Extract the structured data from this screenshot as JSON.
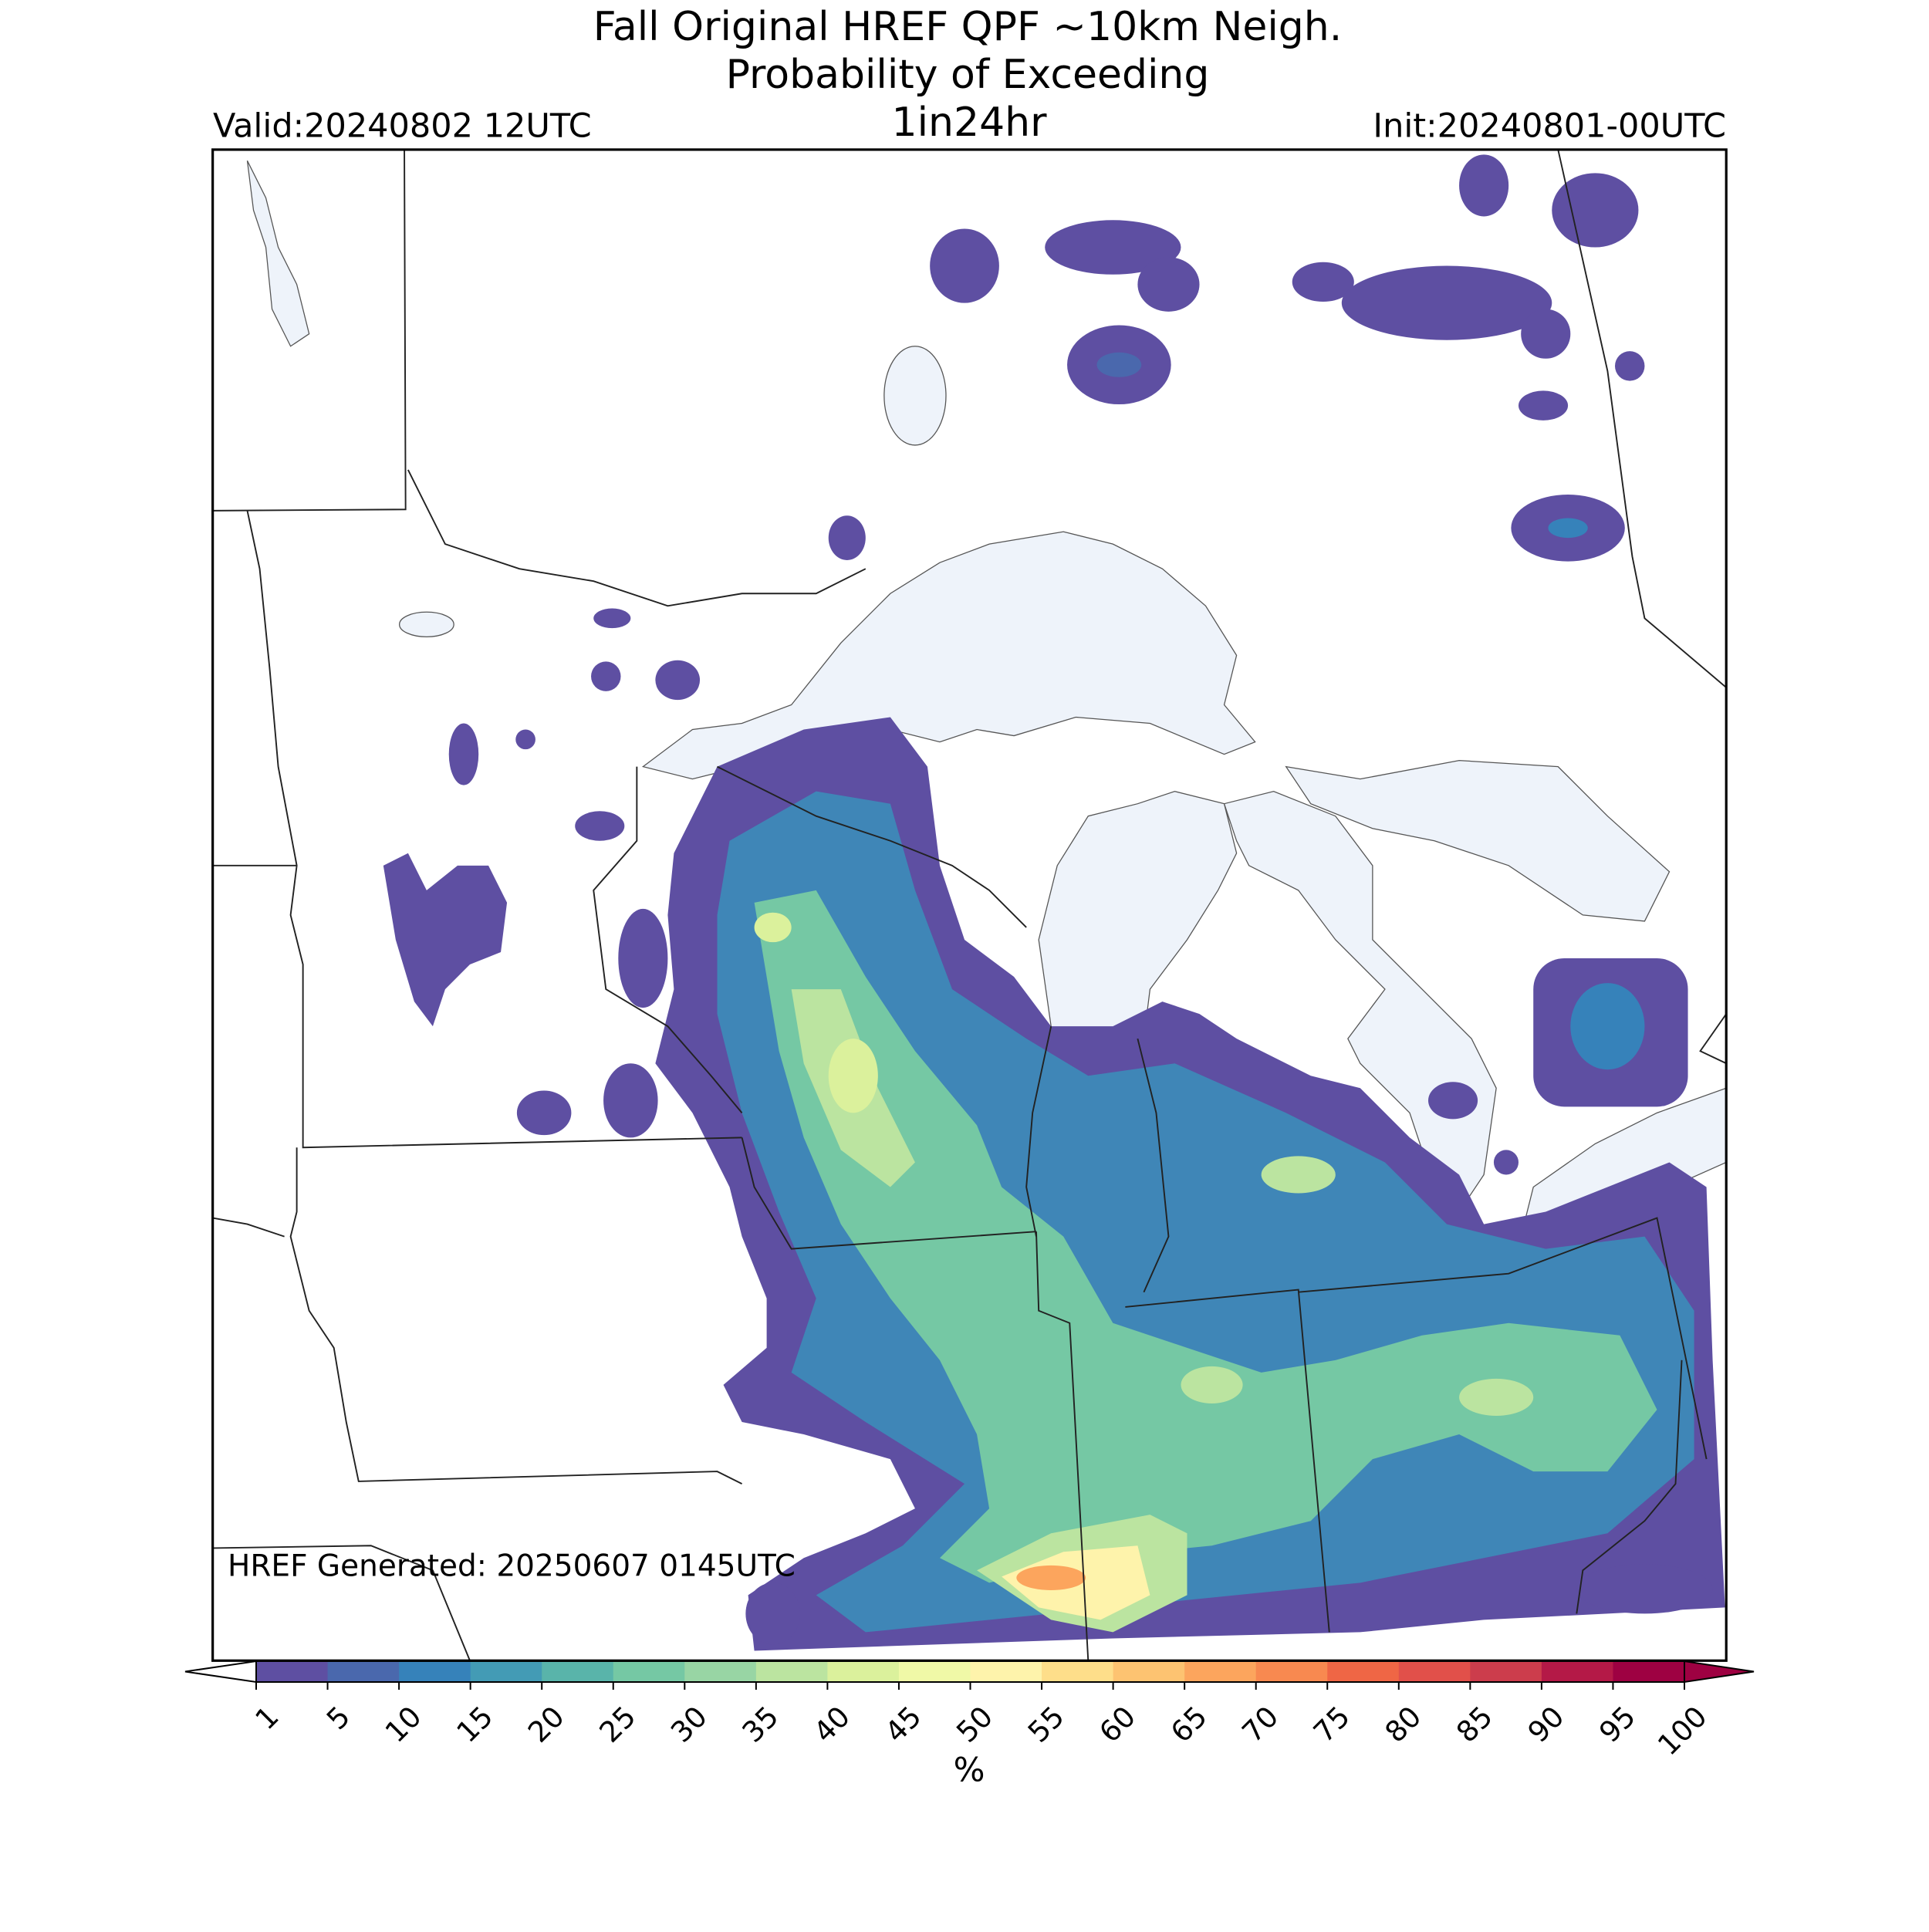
{
  "title": [
    "Fall Original HREF QPF ~10km Neigh.",
    "Probability of Exceeding"
  ],
  "valid": "Valid:20240802 12UTC",
  "period": "1in24hr",
  "init": "Init:20240801-00UTC",
  "generated": "HREF Generated: 20250607 0145UTC",
  "colorbar": {
    "label": "%",
    "ticks": [
      1,
      5,
      10,
      15,
      20,
      25,
      30,
      35,
      40,
      45,
      50,
      55,
      60,
      65,
      70,
      75,
      80,
      85,
      90,
      95,
      100
    ],
    "colors": [
      "#5e4fa2",
      "#4a68ad",
      "#3682ba",
      "#439bb5",
      "#59b4aa",
      "#75c8a4",
      "#98d5a4",
      "#bbe4a0",
      "#dbf19c",
      "#f0f9a7",
      "#fef3ab",
      "#fede8a",
      "#fdc371",
      "#fca55d",
      "#f88950",
      "#ef6645",
      "#e1504a",
      "#cc3d4c",
      "#b41947",
      "#9e0142"
    ],
    "under_color": "#ffffff",
    "over_color": "#9e0142"
  }
}
